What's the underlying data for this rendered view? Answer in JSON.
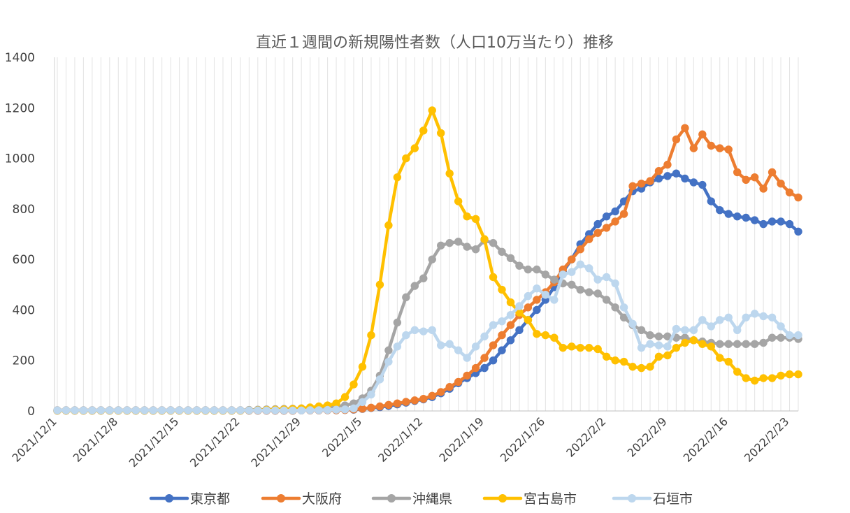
{
  "chart_data": {
    "type": "line",
    "title": "直近１週間の新規陽性者数（人口10万当たり）推移",
    "xlabel": "",
    "ylabel": "",
    "ylim": [
      0,
      1400
    ],
    "yticks": [
      0,
      200,
      400,
      600,
      800,
      1000,
      1200,
      1400
    ],
    "x_start": "2021/12/1",
    "x_tick_labels": [
      "2021/12/1",
      "2021/12/8",
      "2021/12/15",
      "2021/12/22",
      "2021/12/29",
      "2022/1/5",
      "2022/1/12",
      "2022/1/19",
      "2022/1/26",
      "2022/2/2",
      "2022/2/9",
      "2022/2/16",
      "2022/2/23"
    ],
    "grid": "vertical daily lines",
    "legend_position": "bottom",
    "x": [
      "2021/12/1",
      "2021/12/2",
      "2021/12/3",
      "2021/12/4",
      "2021/12/5",
      "2021/12/6",
      "2021/12/7",
      "2021/12/8",
      "2021/12/9",
      "2021/12/10",
      "2021/12/11",
      "2021/12/12",
      "2021/12/13",
      "2021/12/14",
      "2021/12/15",
      "2021/12/16",
      "2021/12/17",
      "2021/12/18",
      "2021/12/19",
      "2021/12/20",
      "2021/12/21",
      "2021/12/22",
      "2021/12/23",
      "2021/12/24",
      "2021/12/25",
      "2021/12/26",
      "2021/12/27",
      "2021/12/28",
      "2021/12/29",
      "2021/12/30",
      "2021/12/31",
      "2022/1/1",
      "2022/1/2",
      "2022/1/3",
      "2022/1/4",
      "2022/1/5",
      "2022/1/6",
      "2022/1/7",
      "2022/1/8",
      "2022/1/9",
      "2022/1/10",
      "2022/1/11",
      "2022/1/12",
      "2022/1/13",
      "2022/1/14",
      "2022/1/15",
      "2022/1/16",
      "2022/1/17",
      "2022/1/18",
      "2022/1/19",
      "2022/1/20",
      "2022/1/21",
      "2022/1/22",
      "2022/1/23",
      "2022/1/24",
      "2022/1/25",
      "2022/1/26",
      "2022/1/27",
      "2022/1/28",
      "2022/1/29",
      "2022/1/30",
      "2022/1/31",
      "2022/2/1",
      "2022/2/2",
      "2022/2/3",
      "2022/2/4",
      "2022/2/5",
      "2022/2/6",
      "2022/2/7",
      "2022/2/8",
      "2022/2/9",
      "2022/2/10",
      "2022/2/11",
      "2022/2/12",
      "2022/2/13",
      "2022/2/14",
      "2022/2/15",
      "2022/2/16",
      "2022/2/17",
      "2022/2/18",
      "2022/2/19",
      "2022/2/20",
      "2022/2/21",
      "2022/2/22",
      "2022/2/23",
      "2022/2/24"
    ],
    "series": [
      {
        "name": "東京都",
        "color": "#4472C4",
        "values": [
          1,
          1,
          1,
          1,
          1,
          1,
          1,
          1,
          1,
          1,
          1,
          1,
          1,
          1,
          1,
          1,
          1,
          1,
          1,
          1,
          1,
          1,
          1,
          1,
          1,
          1,
          1,
          1,
          2,
          2,
          2,
          3,
          3,
          4,
          5,
          8,
          12,
          15,
          20,
          26,
          33,
          40,
          46,
          55,
          70,
          88,
          110,
          130,
          150,
          170,
          200,
          240,
          280,
          320,
          360,
          400,
          440,
          490,
          550,
          600,
          660,
          700,
          740,
          770,
          790,
          830,
          870,
          880,
          905,
          920,
          930,
          940,
          920,
          905,
          895,
          830,
          795,
          780,
          770,
          765,
          755,
          740,
          750,
          750,
          740,
          710
        ]
      },
      {
        "name": "大阪府",
        "color": "#ED7D31",
        "values": [
          1,
          1,
          1,
          1,
          1,
          1,
          1,
          1,
          1,
          1,
          1,
          1,
          1,
          1,
          1,
          1,
          1,
          1,
          1,
          1,
          1,
          1,
          1,
          1,
          1,
          1,
          1,
          1,
          2,
          2,
          2,
          3,
          3,
          4,
          6,
          9,
          13,
          18,
          24,
          30,
          36,
          42,
          48,
          60,
          75,
          95,
          115,
          140,
          170,
          210,
          260,
          300,
          340,
          380,
          410,
          440,
          470,
          510,
          560,
          600,
          640,
          680,
          705,
          725,
          750,
          780,
          890,
          900,
          910,
          950,
          975,
          1075,
          1120,
          1040,
          1095,
          1050,
          1040,
          1035,
          945,
          915,
          925,
          880,
          945,
          900,
          865,
          845
        ]
      },
      {
        "name": "沖縄県",
        "color": "#A5A5A5",
        "values": [
          3,
          3,
          3,
          3,
          3,
          3,
          3,
          3,
          3,
          3,
          3,
          3,
          3,
          3,
          3,
          3,
          3,
          3,
          3,
          3,
          3,
          3,
          4,
          5,
          6,
          7,
          8,
          9,
          10,
          12,
          14,
          16,
          18,
          22,
          30,
          50,
          80,
          140,
          240,
          350,
          450,
          495,
          525,
          600,
          655,
          665,
          670,
          650,
          640,
          675,
          665,
          630,
          605,
          575,
          560,
          560,
          540,
          520,
          505,
          500,
          480,
          470,
          465,
          440,
          410,
          370,
          340,
          320,
          300,
          295,
          295,
          290,
          290,
          280,
          275,
          270,
          265,
          265,
          265,
          265,
          265,
          270,
          290,
          290,
          290,
          285
        ]
      },
      {
        "name": "宮古島市",
        "color": "#FFC000",
        "values": [
          1,
          1,
          1,
          1,
          1,
          1,
          1,
          1,
          1,
          1,
          1,
          1,
          1,
          1,
          1,
          1,
          1,
          1,
          1,
          1,
          1,
          1,
          2,
          3,
          4,
          5,
          6,
          8,
          10,
          14,
          18,
          22,
          30,
          55,
          105,
          175,
          300,
          500,
          735,
          925,
          1000,
          1040,
          1110,
          1190,
          1100,
          940,
          830,
          770,
          760,
          680,
          530,
          480,
          430,
          390,
          360,
          305,
          300,
          290,
          250,
          255,
          250,
          250,
          245,
          215,
          200,
          195,
          175,
          170,
          175,
          215,
          220,
          250,
          270,
          280,
          265,
          255,
          210,
          195,
          155,
          130,
          120,
          130,
          130,
          140,
          145,
          145
        ]
      },
      {
        "name": "石垣市",
        "color": "#BDD7EE",
        "values": [
          2,
          2,
          2,
          2,
          2,
          2,
          2,
          2,
          2,
          2,
          2,
          2,
          2,
          2,
          2,
          2,
          2,
          2,
          2,
          2,
          2,
          2,
          2,
          2,
          2,
          2,
          2,
          2,
          2,
          3,
          3,
          4,
          5,
          6,
          10,
          35,
          65,
          125,
          195,
          255,
          300,
          320,
          315,
          320,
          260,
          265,
          240,
          210,
          255,
          295,
          340,
          355,
          380,
          415,
          455,
          485,
          460,
          440,
          540,
          550,
          580,
          565,
          520,
          530,
          505,
          410,
          345,
          250,
          265,
          260,
          255,
          325,
          320,
          320,
          360,
          335,
          360,
          370,
          320,
          370,
          385,
          375,
          370,
          335,
          300,
          300
        ]
      }
    ]
  }
}
